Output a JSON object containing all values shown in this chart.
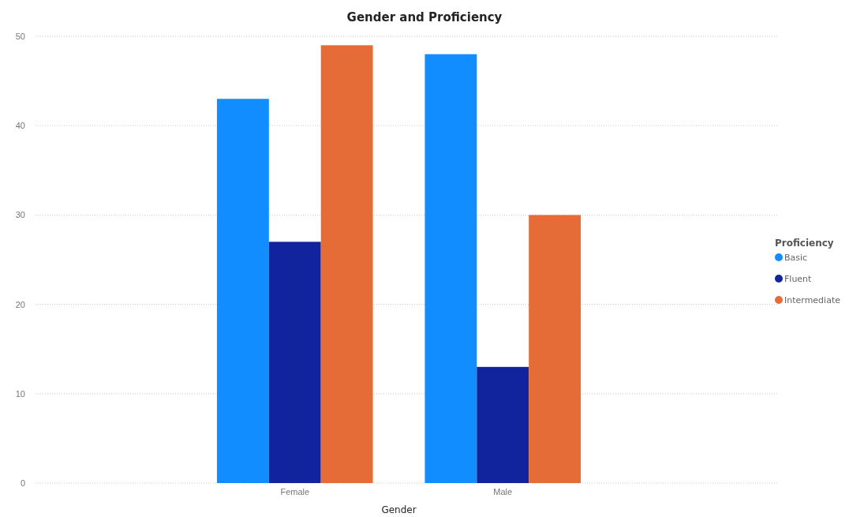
{
  "chart_data": {
    "type": "bar",
    "title": "Gender and Proficiency",
    "xlabel": "Gender",
    "legend_title": "Proficiency",
    "categories": [
      "Female",
      "Male"
    ],
    "series": [
      {
        "name": "Basic",
        "color": "#118dff",
        "values": [
          43,
          48
        ]
      },
      {
        "name": "Fluent",
        "color": "#12239e",
        "values": [
          27,
          13
        ]
      },
      {
        "name": "Intermediate",
        "color": "#e66c37",
        "values": [
          49,
          30
        ]
      }
    ],
    "ylim": [
      0,
      50
    ],
    "yticks": [
      0,
      10,
      20,
      30,
      40,
      50
    ],
    "grid": "y",
    "legend": "right"
  }
}
